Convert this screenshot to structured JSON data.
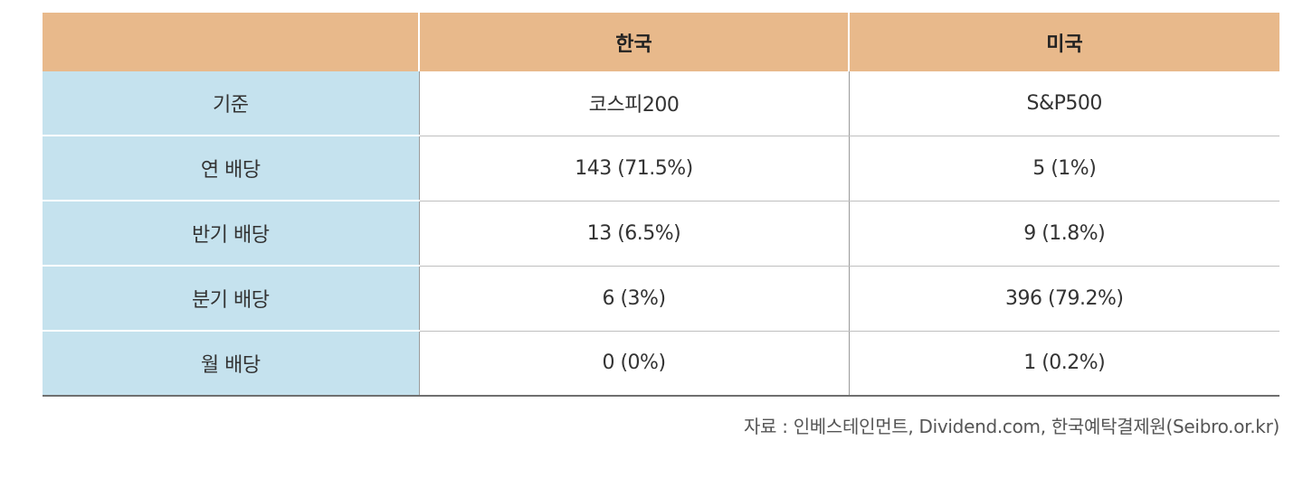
{
  "table": {
    "headers": [
      "",
      "한국",
      "미국"
    ],
    "rows": [
      {
        "label": "기준",
        "korea": "코스피200",
        "usa": "S&P500"
      },
      {
        "label": "연 배당",
        "korea": "143 (71.5%)",
        "usa": "5 (1%)"
      },
      {
        "label": "반기 배당",
        "korea": "13 (6.5%)",
        "usa": "9 (1.8%)"
      },
      {
        "label": "분기 배당",
        "korea": "6 (3%)",
        "usa": "396 (79.2%)"
      },
      {
        "label": "월 배당",
        "korea": "0 (0%)",
        "usa": "1 (0.2%)"
      }
    ]
  },
  "source": "자료 : 인베스테인먼트, Dividend.com, 한국예탁결제원(Seibro.or.kr)",
  "colors": {
    "header_bg": "#e8b98b",
    "rowhead_bg": "#c5e2ee"
  }
}
